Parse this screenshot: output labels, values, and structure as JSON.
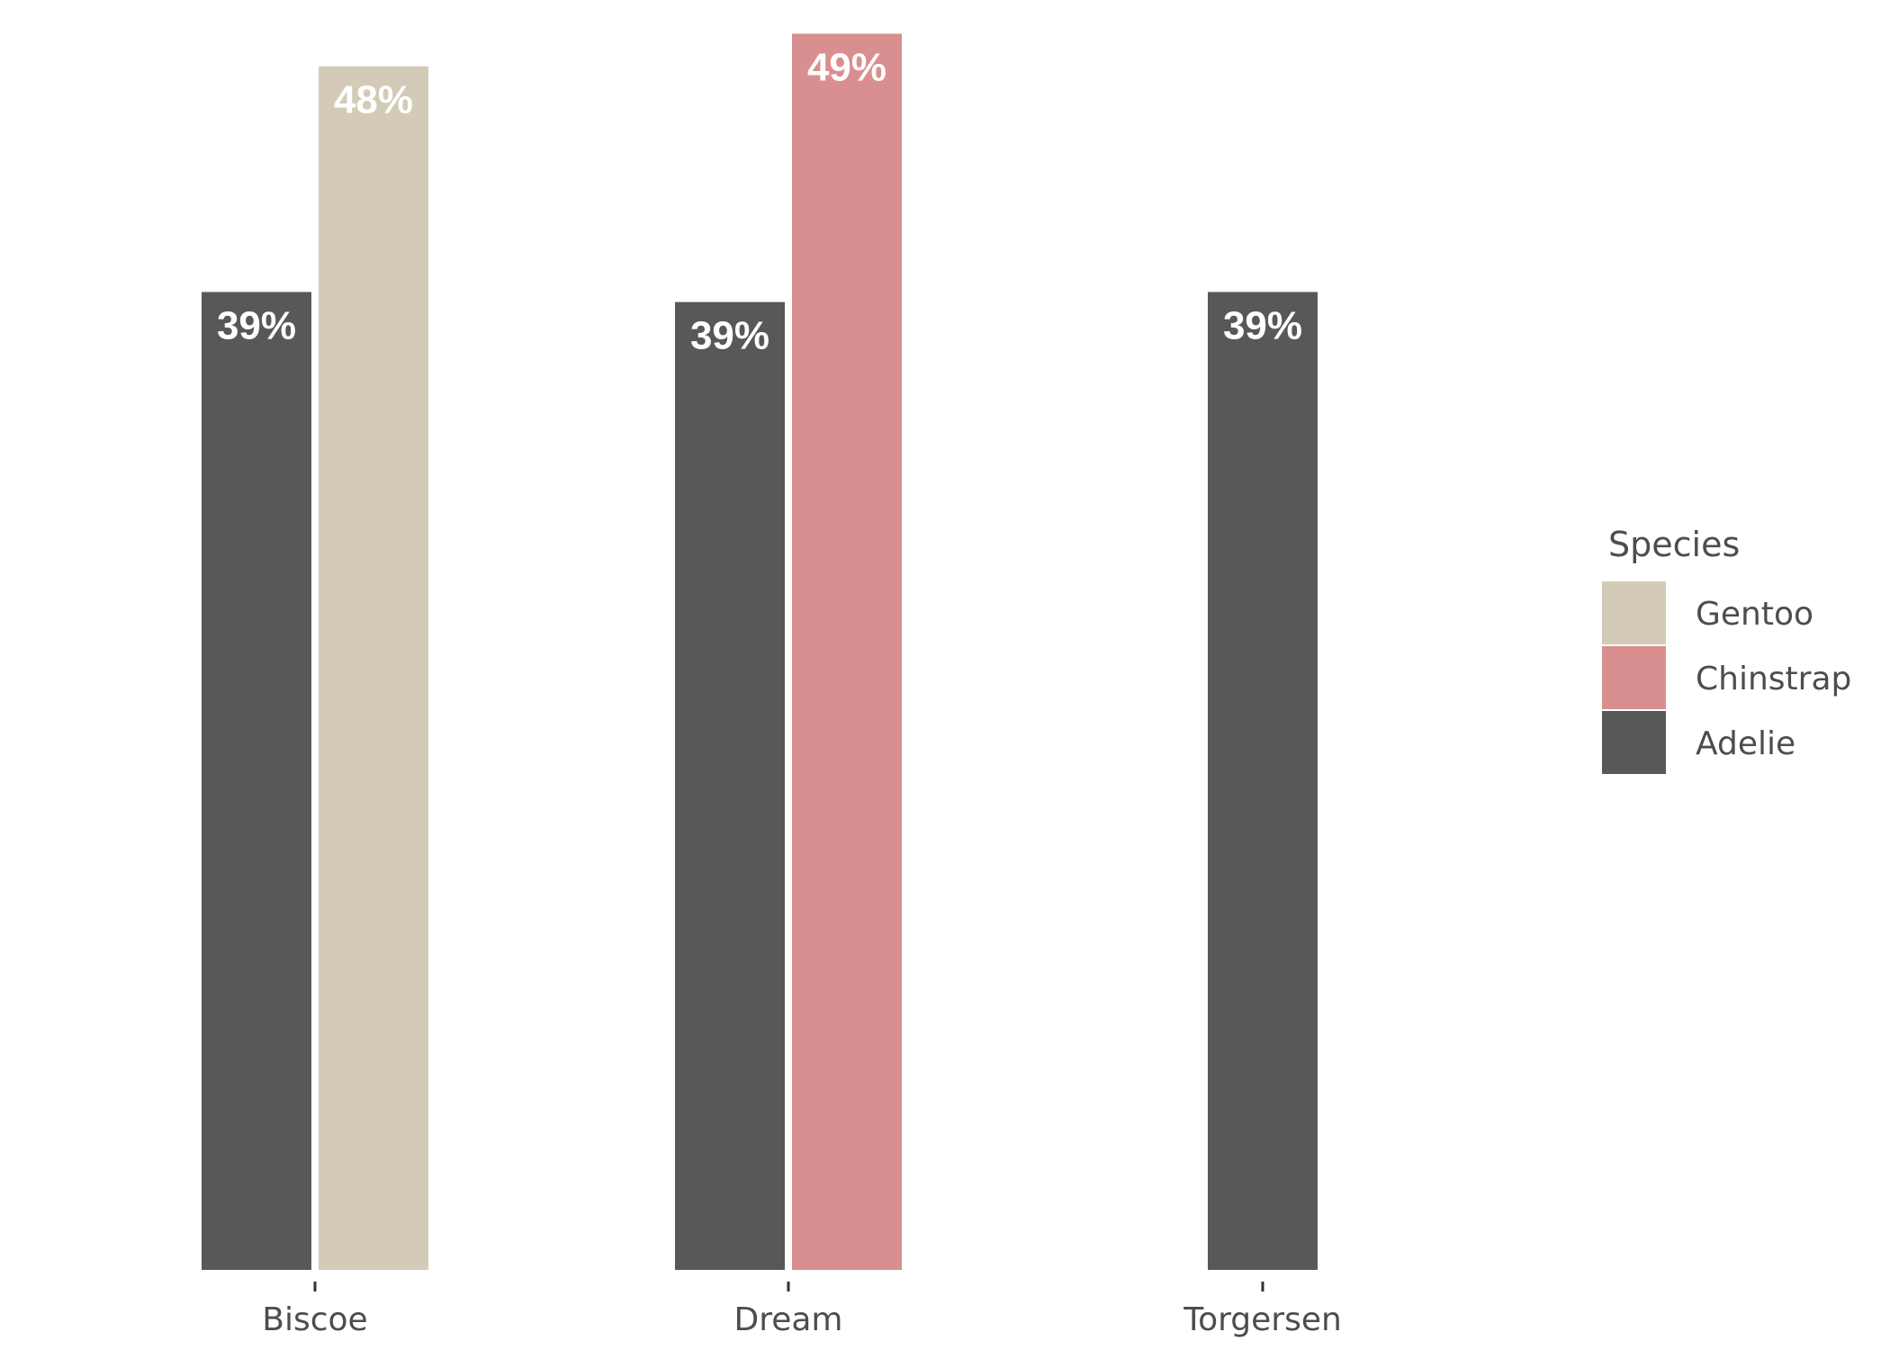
{
  "chart_data": {
    "type": "bar",
    "title": "",
    "xlabel": "",
    "ylabel": "",
    "categories": [
      "Biscoe",
      "Dream",
      "Torgersen"
    ],
    "ylim": [
      0,
      50
    ],
    "grid": false,
    "legend_position": "right",
    "legend": {
      "title": "Species",
      "entries": [
        {
          "name": "Gentoo",
          "color": "#d3cbb8"
        },
        {
          "name": "Chinstrap",
          "color": "#d98e90"
        },
        {
          "name": "Adelie",
          "color": "#58585a"
        }
      ]
    },
    "bars": [
      {
        "category": "Biscoe",
        "species": "Adelie",
        "value": 39,
        "label": "39%",
        "color": "#58585a"
      },
      {
        "category": "Biscoe",
        "species": "Gentoo",
        "value": 48,
        "label": "48%",
        "color": "#d3cbb8"
      },
      {
        "category": "Dream",
        "species": "Adelie",
        "value": 38.6,
        "label": "39%",
        "color": "#58585a"
      },
      {
        "category": "Dream",
        "species": "Chinstrap",
        "value": 49.3,
        "label": "49%",
        "color": "#d98e90"
      },
      {
        "category": "Torgersen",
        "species": "Adelie",
        "value": 39,
        "label": "39%",
        "color": "#58585a"
      }
    ]
  }
}
